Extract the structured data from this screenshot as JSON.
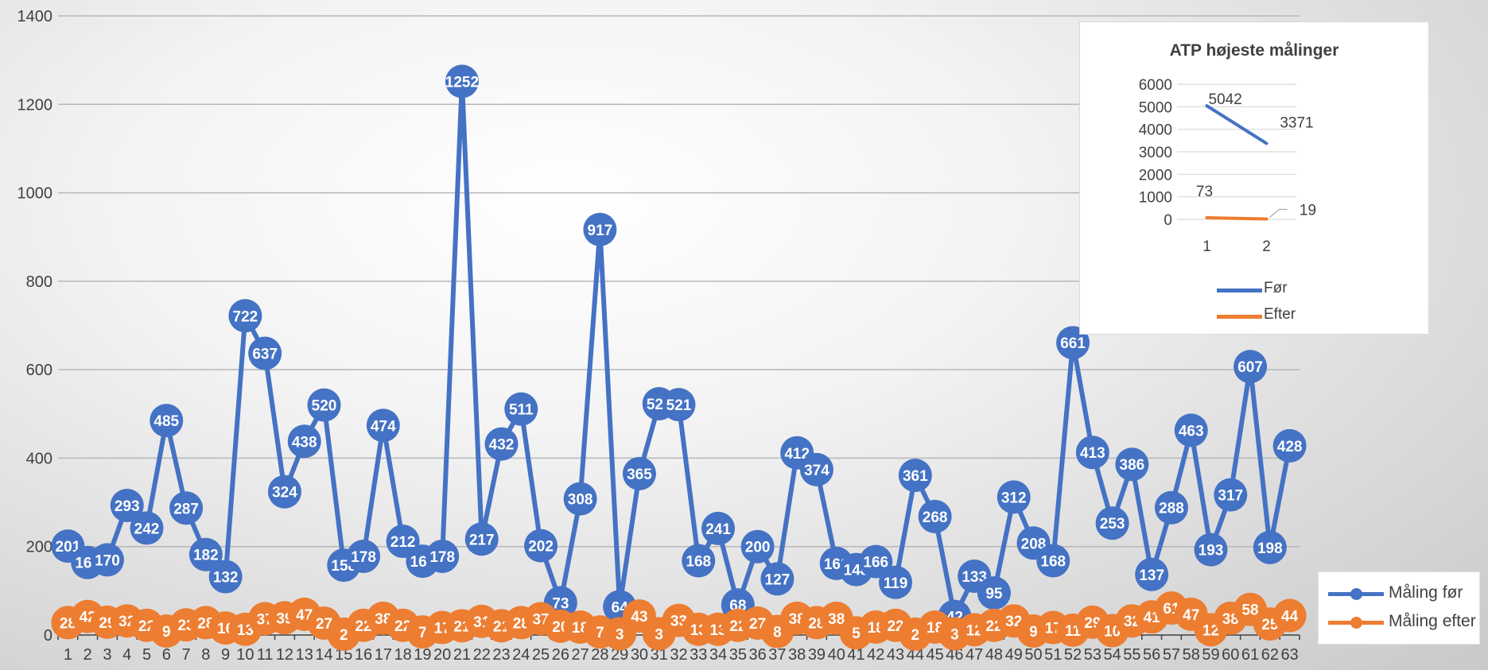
{
  "chart_data": [
    {
      "type": "line",
      "title": "",
      "xlabel": "",
      "ylabel": "",
      "ylim": [
        0,
        1400
      ],
      "yticks": [
        0,
        200,
        400,
        600,
        800,
        1000,
        1200,
        1400
      ],
      "grid": true,
      "legend": "bottom-right",
      "categories": [
        1,
        2,
        3,
        4,
        5,
        6,
        7,
        8,
        9,
        10,
        11,
        12,
        13,
        14,
        15,
        16,
        17,
        18,
        19,
        20,
        21,
        22,
        23,
        24,
        25,
        26,
        27,
        28,
        29,
        30,
        31,
        32,
        33,
        34,
        35,
        36,
        37,
        38,
        39,
        40,
        41,
        42,
        43,
        44,
        45,
        46,
        47,
        48,
        49,
        50,
        51,
        52,
        53,
        54,
        55,
        56,
        57,
        58,
        59,
        60,
        61,
        62,
        63
      ],
      "series": [
        {
          "name": "Måling før",
          "color": "#4472c4",
          "values": [
            201,
            164,
            170,
            293,
            242,
            485,
            287,
            182,
            132,
            722,
            637,
            324,
            438,
            520,
            158,
            178,
            474,
            212,
            167,
            178,
            1252,
            217,
            432,
            511,
            202,
            73,
            308,
            917,
            64,
            365,
            523,
            521,
            168,
            241,
            68,
            200,
            127,
            412,
            374,
            162,
            148,
            166,
            119,
            361,
            268,
            42,
            133,
            95,
            312,
            208,
            168,
            661,
            413,
            253,
            386,
            137,
            288,
            463,
            193,
            317,
            607,
            198,
            428
          ]
        },
        {
          "name": "Måling efter",
          "color": "#ed7d31",
          "values": [
            28,
            42,
            29,
            32,
            22,
            9,
            23,
            28,
            16,
            13,
            37,
            39,
            47,
            27,
            2,
            22,
            38,
            22,
            7,
            17,
            21,
            31,
            21,
            28,
            37,
            20,
            18,
            7,
            3,
            43,
            3,
            33,
            13,
            13,
            22,
            27,
            8,
            38,
            28,
            38,
            5,
            18,
            22,
            2,
            18,
            3,
            12,
            22,
            32,
            9,
            17,
            11,
            29,
            10,
            32,
            41,
            61,
            47,
            12,
            38,
            58,
            25,
            44
          ]
        }
      ]
    },
    {
      "type": "line",
      "title": "ATP højeste målinger",
      "xlabel": "",
      "ylabel": "",
      "ylim": [
        0,
        6000
      ],
      "yticks": [
        0,
        1000,
        2000,
        3000,
        4000,
        5000,
        6000
      ],
      "grid": true,
      "legend": "bottom",
      "categories": [
        1,
        2
      ],
      "series": [
        {
          "name": "Før",
          "color": "#4472c4",
          "values": [
            5042,
            3371
          ]
        },
        {
          "name": "Efter",
          "color": "#ed7d31",
          "values": [
            73,
            19
          ]
        }
      ]
    }
  ]
}
